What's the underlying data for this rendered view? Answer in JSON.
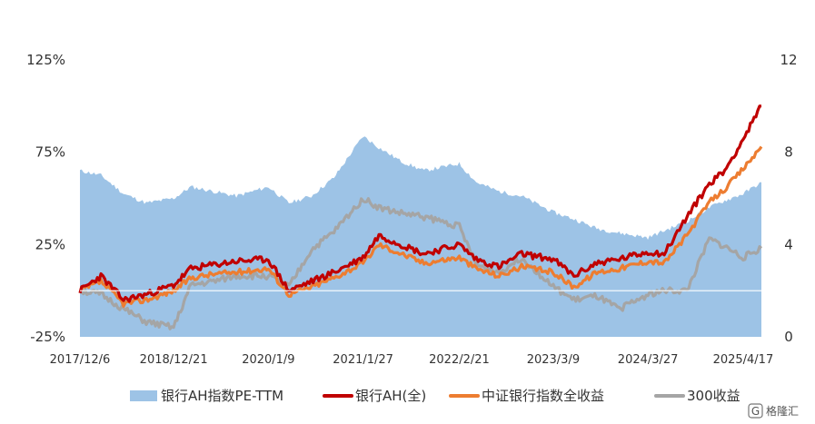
{
  "chart_data": {
    "type": "line",
    "x_ticks": [
      "2017/12/6",
      "2018/12/21",
      "2020/1/9",
      "2021/1/27",
      "2022/2/21",
      "2023/3/9",
      "2024/3/27",
      "2025/4/17"
    ],
    "y_left": {
      "ticks": [
        "125%",
        "75%",
        "25%",
        "-25%"
      ],
      "values": [
        1.25,
        0.75,
        0.25,
        -0.25
      ],
      "range": [
        -0.25,
        1.25
      ]
    },
    "y_right": {
      "ticks": [
        "12",
        "8",
        "4",
        "0"
      ],
      "values": [
        12,
        8,
        4,
        0
      ],
      "range": [
        0,
        12
      ]
    },
    "legend_position": "bottom",
    "grid": false,
    "series": [
      {
        "name": "银行AH指数PE-TTM",
        "kind": "area",
        "axis": "right",
        "color": "#9dc3e6",
        "x": [
          "2017/12/6",
          "2018/3/1",
          "2018/6/1",
          "2018/9/1",
          "2018/12/21",
          "2019/3/1",
          "2019/6/1",
          "2019/9/1",
          "2020/1/9",
          "2020/4/1",
          "2020/7/1",
          "2020/10/1",
          "2021/1/27",
          "2021/4/1",
          "2021/7/1",
          "2021/10/1",
          "2022/2/21",
          "2022/5/1",
          "2022/8/1",
          "2022/11/1",
          "2023/3/9",
          "2023/6/1",
          "2023/9/1",
          "2023/12/1",
          "2024/3/27",
          "2024/6/1",
          "2024/9/1",
          "2024/12/1",
          "2025/2/1",
          "2025/4/17",
          "2025/6/30"
        ],
        "values": [
          7.2,
          7.0,
          6.2,
          5.8,
          6.0,
          6.5,
          6.3,
          6.1,
          6.5,
          5.8,
          6.1,
          6.9,
          8.7,
          8.2,
          7.6,
          7.2,
          7.5,
          6.7,
          6.3,
          6.1,
          5.4,
          5.1,
          4.7,
          4.5,
          4.3,
          4.6,
          5.0,
          5.6,
          5.9,
          6.2,
          6.7
        ]
      },
      {
        "name": "银行AH(全)",
        "kind": "line",
        "axis": "left",
        "color": "#c00000",
        "x": [
          "2017/12/6",
          "2018/3/1",
          "2018/6/1",
          "2018/9/1",
          "2018/12/21",
          "2019/3/1",
          "2019/6/1",
          "2019/9/1",
          "2020/1/9",
          "2020/4/1",
          "2020/7/1",
          "2020/10/1",
          "2021/1/27",
          "2021/4/1",
          "2021/7/1",
          "2021/10/1",
          "2022/2/21",
          "2022/5/1",
          "2022/8/1",
          "2022/11/1",
          "2023/3/9",
          "2023/6/1",
          "2023/9/1",
          "2023/12/1",
          "2024/3/27",
          "2024/6/1",
          "2024/9/1",
          "2024/12/1",
          "2025/2/1",
          "2025/4/17",
          "2025/6/30"
        ],
        "values": [
          0.0,
          0.08,
          -0.05,
          -0.02,
          0.03,
          0.12,
          0.14,
          0.16,
          0.17,
          0.0,
          0.05,
          0.1,
          0.18,
          0.3,
          0.25,
          0.2,
          0.25,
          0.17,
          0.13,
          0.2,
          0.17,
          0.08,
          0.15,
          0.17,
          0.21,
          0.2,
          0.4,
          0.58,
          0.65,
          0.82,
          1.0
        ]
      },
      {
        "name": "中证银行指数全收益",
        "kind": "line",
        "axis": "left",
        "color": "#ed7d31",
        "x": [
          "2017/12/6",
          "2018/3/1",
          "2018/6/1",
          "2018/9/1",
          "2018/12/21",
          "2019/3/1",
          "2019/6/1",
          "2019/9/1",
          "2020/1/9",
          "2020/4/1",
          "2020/7/1",
          "2020/10/1",
          "2021/1/27",
          "2021/4/1",
          "2021/7/1",
          "2021/10/1",
          "2022/2/21",
          "2022/5/1",
          "2022/8/1",
          "2022/11/1",
          "2023/3/9",
          "2023/6/1",
          "2023/9/1",
          "2023/12/1",
          "2024/3/27",
          "2024/6/1",
          "2024/9/1",
          "2024/12/1",
          "2025/2/1",
          "2025/4/17",
          "2025/6/30"
        ],
        "values": [
          0.0,
          0.05,
          -0.07,
          -0.05,
          0.0,
          0.07,
          0.09,
          0.1,
          0.12,
          -0.02,
          0.02,
          0.07,
          0.15,
          0.25,
          0.2,
          0.15,
          0.18,
          0.12,
          0.08,
          0.13,
          0.1,
          0.02,
          0.1,
          0.12,
          0.16,
          0.15,
          0.3,
          0.48,
          0.55,
          0.66,
          0.78
        ]
      },
      {
        "name": "300收益",
        "kind": "line",
        "axis": "left",
        "color": "#a5a5a5",
        "x": [
          "2017/12/6",
          "2018/3/1",
          "2018/6/1",
          "2018/9/1",
          "2018/12/21",
          "2019/3/1",
          "2019/6/1",
          "2019/9/1",
          "2020/1/9",
          "2020/4/1",
          "2020/7/1",
          "2020/10/1",
          "2021/1/27",
          "2021/4/1",
          "2021/7/1",
          "2021/10/1",
          "2022/2/21",
          "2022/5/1",
          "2022/8/1",
          "2022/11/1",
          "2023/3/9",
          "2023/6/1",
          "2023/9/1",
          "2023/12/1",
          "2024/3/27",
          "2024/6/1",
          "2024/9/1",
          "2024/12/1",
          "2025/2/1",
          "2025/4/17",
          "2025/6/30"
        ],
        "values": [
          0.0,
          -0.02,
          -0.1,
          -0.17,
          -0.2,
          0.03,
          0.05,
          0.08,
          0.08,
          0.02,
          0.22,
          0.32,
          0.5,
          0.45,
          0.42,
          0.4,
          0.35,
          0.14,
          0.1,
          0.18,
          0.02,
          -0.05,
          -0.03,
          -0.1,
          -0.02,
          0.0,
          0.0,
          0.28,
          0.24,
          0.18,
          0.23
        ]
      }
    ]
  },
  "watermark": {
    "icon": "g-logo-icon",
    "text": "格隆汇"
  }
}
